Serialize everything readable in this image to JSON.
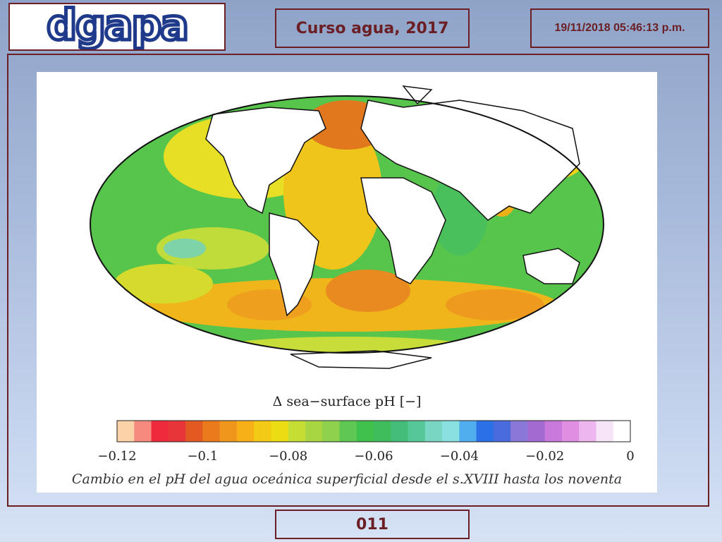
{
  "header": {
    "logo_text": "dgapa",
    "title": "Curso agua, 2017",
    "datetime": "19/11/2018 05:46:13 p.m."
  },
  "figure": {
    "colorbar_title": "Δ sea−surface pH [−]",
    "colorbar_ticks": [
      "−0.12",
      "−0.1",
      "−0.08",
      "−0.06",
      "−0.04",
      "−0.02",
      "0"
    ],
    "colorbar_colors": [
      "#fcd3a8",
      "#f78a7e",
      "#ee2a3c",
      "#e8353a",
      "#e25a22",
      "#ea7a1c",
      "#f0961c",
      "#f7b018",
      "#f3cb16",
      "#ecdd12",
      "#c6de33",
      "#a8d542",
      "#8fd04c",
      "#5ec853",
      "#40c04d",
      "#3fbd5d",
      "#44bd78",
      "#56c796",
      "#79d6c3",
      "#8ae0e0",
      "#50aeee",
      "#2b70e6",
      "#4a6bdd",
      "#8a78d8",
      "#a36bd2",
      "#c979db",
      "#e08ee2",
      "#ecb6ef",
      "#f8e4f8",
      "#ffffff"
    ],
    "caption": "Cambio en el pH del agua oceánica superficial desde el s.XVIII hasta los noventa"
  },
  "footer": {
    "page_number": "011"
  },
  "colors": {
    "border": "#6b1f24",
    "logo_blue": "#1f3a8a"
  }
}
